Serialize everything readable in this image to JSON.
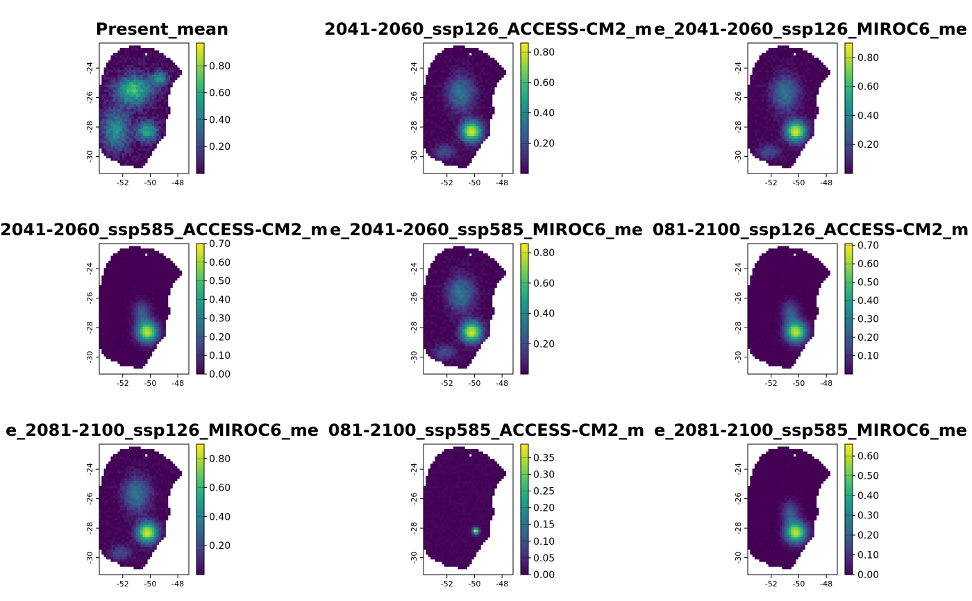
{
  "colors": {
    "viridis": [
      "#440154",
      "#482878",
      "#3e4a89",
      "#31688e",
      "#26828e",
      "#1f9e89",
      "#35b779",
      "#6ece58",
      "#b5de2b",
      "#fde725"
    ],
    "frame": "#000000",
    "background": "#ffffff"
  },
  "chart_data": [
    {
      "type": "heatmap",
      "title": "Present_mean",
      "xticks": [
        "-52",
        "-50",
        "-48"
      ],
      "yticks": [
        "-24",
        "-26",
        "-28",
        "-30"
      ],
      "legend_ticks": [
        {
          "label": "0.80",
          "value": 0.8
        },
        {
          "label": "0.60",
          "value": 0.6
        },
        {
          "label": "0.40",
          "value": 0.4
        },
        {
          "label": "0.20",
          "value": 0.2
        }
      ],
      "range": [
        0.0,
        0.97
      ],
      "pattern": "broad"
    },
    {
      "type": "heatmap",
      "title": "2041-2060_ssp126_ACCESS-CM2_m",
      "xticks": [
        "-52",
        "-50",
        "-48"
      ],
      "yticks": [
        "-24",
        "-26",
        "-28",
        "-30"
      ],
      "legend_ticks": [
        {
          "label": "0.80",
          "value": 0.8
        },
        {
          "label": "0.60",
          "value": 0.6
        },
        {
          "label": "0.40",
          "value": 0.4
        },
        {
          "label": "0.20",
          "value": 0.2
        }
      ],
      "range": [
        0.0,
        0.86
      ],
      "pattern": "medium"
    },
    {
      "type": "heatmap",
      "title": "e_2041-2060_ssp126_MIROC6_me",
      "xticks": [
        "-52",
        "-50",
        "-48"
      ],
      "yticks": [
        "-24",
        "-26",
        "-28",
        "-30"
      ],
      "legend_ticks": [
        {
          "label": "0.80",
          "value": 0.8
        },
        {
          "label": "0.60",
          "value": 0.6
        },
        {
          "label": "0.40",
          "value": 0.4
        },
        {
          "label": "0.20",
          "value": 0.2
        }
      ],
      "range": [
        0.0,
        0.9
      ],
      "pattern": "medium"
    },
    {
      "type": "heatmap",
      "title": "2041-2060_ssp585_ACCESS-CM2_m",
      "xticks": [
        "-52",
        "-50",
        "-48"
      ],
      "yticks": [
        "-24",
        "-26",
        "-28",
        "-30"
      ],
      "legend_ticks": [
        {
          "label": "0.70",
          "value": 0.7
        },
        {
          "label": "0.60",
          "value": 0.6
        },
        {
          "label": "0.50",
          "value": 0.5
        },
        {
          "label": "0.40",
          "value": 0.4
        },
        {
          "label": "0.30",
          "value": 0.3
        },
        {
          "label": "0.20",
          "value": 0.2
        },
        {
          "label": "0.10",
          "value": 0.1
        },
        {
          "label": "0.00",
          "value": 0.0
        }
      ],
      "range": [
        0.0,
        0.7
      ],
      "pattern": "narrow"
    },
    {
      "type": "heatmap",
      "title": "e_2041-2060_ssp585_MIROC6_me",
      "xticks": [
        "-52",
        "-50",
        "-48"
      ],
      "yticks": [
        "-24",
        "-26",
        "-28",
        "-30"
      ],
      "legend_ticks": [
        {
          "label": "0.80",
          "value": 0.8
        },
        {
          "label": "0.60",
          "value": 0.6
        },
        {
          "label": "0.40",
          "value": 0.4
        },
        {
          "label": "0.20",
          "value": 0.2
        }
      ],
      "range": [
        0.0,
        0.86
      ],
      "pattern": "medium"
    },
    {
      "type": "heatmap",
      "title": "081-2100_ssp126_ACCESS-CM2_m",
      "xticks": [
        "-52",
        "-50",
        "-48"
      ],
      "yticks": [
        "-24",
        "-26",
        "-28",
        "-30"
      ],
      "legend_ticks": [
        {
          "label": "0.70",
          "value": 0.7
        },
        {
          "label": "0.60",
          "value": 0.6
        },
        {
          "label": "0.50",
          "value": 0.5
        },
        {
          "label": "0.40",
          "value": 0.4
        },
        {
          "label": "0.30",
          "value": 0.3
        },
        {
          "label": "0.20",
          "value": 0.2
        },
        {
          "label": "0.10",
          "value": 0.1
        }
      ],
      "range": [
        0.0,
        0.71
      ],
      "pattern": "narrow"
    },
    {
      "type": "heatmap",
      "title": "e_2081-2100_ssp126_MIROC6_me",
      "xticks": [
        "-52",
        "-50",
        "-48"
      ],
      "yticks": [
        "-24",
        "-26",
        "-28",
        "-30"
      ],
      "legend_ticks": [
        {
          "label": "0.80",
          "value": 0.8
        },
        {
          "label": "0.60",
          "value": 0.6
        },
        {
          "label": "0.40",
          "value": 0.4
        },
        {
          "label": "0.20",
          "value": 0.2
        }
      ],
      "range": [
        0.0,
        0.9
      ],
      "pattern": "medium"
    },
    {
      "type": "heatmap",
      "title": "081-2100_ssp585_ACCESS-CM2_m",
      "xticks": [
        "-52",
        "-50",
        "-48"
      ],
      "yticks": [
        "-24",
        "-26",
        "-28",
        "-30"
      ],
      "legend_ticks": [
        {
          "label": "0.35",
          "value": 0.35
        },
        {
          "label": "0.30",
          "value": 0.3
        },
        {
          "label": "0.25",
          "value": 0.25
        },
        {
          "label": "0.20",
          "value": 0.2
        },
        {
          "label": "0.15",
          "value": 0.15
        },
        {
          "label": "0.10",
          "value": 0.1
        },
        {
          "label": "0.05",
          "value": 0.05
        },
        {
          "label": "0.00",
          "value": 0.0
        }
      ],
      "range": [
        0.0,
        0.39
      ],
      "pattern": "spot"
    },
    {
      "type": "heatmap",
      "title": "e_2081-2100_ssp585_MIROC6_me",
      "xticks": [
        "-52",
        "-50",
        "-48"
      ],
      "yticks": [
        "-24",
        "-26",
        "-28",
        "-30"
      ],
      "legend_ticks": [
        {
          "label": "0.60",
          "value": 0.6
        },
        {
          "label": "0.50",
          "value": 0.5
        },
        {
          "label": "0.40",
          "value": 0.4
        },
        {
          "label": "0.30",
          "value": 0.3
        },
        {
          "label": "0.20",
          "value": 0.2
        },
        {
          "label": "0.10",
          "value": 0.1
        },
        {
          "label": "0.00",
          "value": 0.0
        }
      ],
      "range": [
        0.0,
        0.66
      ],
      "pattern": "narrow"
    }
  ]
}
